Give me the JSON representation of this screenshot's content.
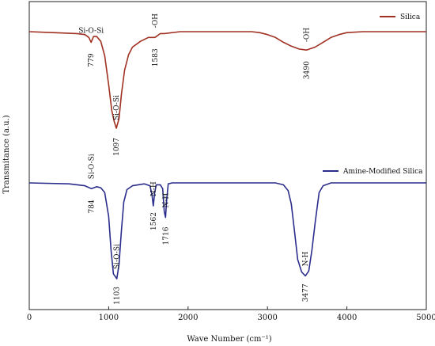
{
  "chart_data": {
    "type": "line",
    "xlabel": "Wave Number (cm⁻¹)",
    "ylabel": "Transmitance (a.u.)",
    "xlim": [
      0,
      5000
    ],
    "xticks": [
      "0",
      "1000",
      "2000",
      "3000",
      "4000",
      "5000"
    ],
    "grid": false,
    "legend_placement": "top-right (one entry per panel)",
    "series": [
      {
        "name": "Silica",
        "color": "#a03021",
        "panel": "top",
        "points": [
          [
            0,
            0
          ],
          [
            300,
            0.01
          ],
          [
            600,
            0.02
          ],
          [
            700,
            0.03
          ],
          [
            750,
            0.06
          ],
          [
            779,
            0.11
          ],
          [
            810,
            0.05
          ],
          [
            850,
            0.05
          ],
          [
            900,
            0.1
          ],
          [
            950,
            0.25
          ],
          [
            1000,
            0.55
          ],
          [
            1040,
            0.82
          ],
          [
            1070,
            0.93
          ],
          [
            1097,
            1.0
          ],
          [
            1130,
            0.9
          ],
          [
            1160,
            0.65
          ],
          [
            1200,
            0.4
          ],
          [
            1250,
            0.24
          ],
          [
            1300,
            0.16
          ],
          [
            1400,
            0.1
          ],
          [
            1500,
            0.06
          ],
          [
            1583,
            0.06
          ],
          [
            1650,
            0.02
          ],
          [
            1700,
            0.02
          ],
          [
            1900,
            0.0
          ],
          [
            2400,
            0.0
          ],
          [
            2800,
            0.0
          ],
          [
            2900,
            0.01
          ],
          [
            3000,
            0.03
          ],
          [
            3100,
            0.06
          ],
          [
            3200,
            0.11
          ],
          [
            3300,
            0.15
          ],
          [
            3400,
            0.18
          ],
          [
            3490,
            0.19
          ],
          [
            3600,
            0.16
          ],
          [
            3700,
            0.11
          ],
          [
            3800,
            0.06
          ],
          [
            3900,
            0.03
          ],
          [
            4000,
            0.01
          ],
          [
            4200,
            0.0
          ],
          [
            5000,
            0.0
          ]
        ],
        "annotations": [
          {
            "label": "Si-O-Si",
            "x": 779
          },
          {
            "label": "779",
            "x": 779
          },
          {
            "label": "Si-O-Si",
            "x": 1097
          },
          {
            "label": "1097",
            "x": 1097
          },
          {
            "label": "-OH",
            "x": 1583
          },
          {
            "label": "1583",
            "x": 1583
          },
          {
            "label": "-OH",
            "x": 3490
          },
          {
            "label": "3490",
            "x": 3490
          }
        ]
      },
      {
        "name": "Amine-Modified Silica",
        "color": "#2b2d8c",
        "panel": "bottom",
        "points": [
          [
            0,
            0
          ],
          [
            500,
            0.01
          ],
          [
            700,
            0.03
          ],
          [
            784,
            0.06
          ],
          [
            850,
            0.04
          ],
          [
            900,
            0.05
          ],
          [
            950,
            0.1
          ],
          [
            1000,
            0.35
          ],
          [
            1030,
            0.7
          ],
          [
            1060,
            0.95
          ],
          [
            1103,
            1.0
          ],
          [
            1130,
            0.85
          ],
          [
            1160,
            0.5
          ],
          [
            1190,
            0.2
          ],
          [
            1230,
            0.07
          ],
          [
            1300,
            0.03
          ],
          [
            1450,
            0.01
          ],
          [
            1520,
            0.03
          ],
          [
            1545,
            0.12
          ],
          [
            1562,
            0.24
          ],
          [
            1580,
            0.1
          ],
          [
            1600,
            0.02
          ],
          [
            1650,
            0.02
          ],
          [
            1680,
            0.06
          ],
          [
            1700,
            0.3
          ],
          [
            1716,
            0.36
          ],
          [
            1730,
            0.18
          ],
          [
            1750,
            0.01
          ],
          [
            1800,
            0.0
          ],
          [
            2500,
            0.0
          ],
          [
            3100,
            0.0
          ],
          [
            3200,
            0.02
          ],
          [
            3260,
            0.08
          ],
          [
            3300,
            0.22
          ],
          [
            3340,
            0.5
          ],
          [
            3380,
            0.8
          ],
          [
            3430,
            0.93
          ],
          [
            3477,
            0.97
          ],
          [
            3520,
            0.92
          ],
          [
            3560,
            0.7
          ],
          [
            3600,
            0.42
          ],
          [
            3650,
            0.1
          ],
          [
            3700,
            0.03
          ],
          [
            3800,
            0.0
          ],
          [
            5000,
            0.0
          ]
        ],
        "annotations": [
          {
            "label": "Si-O-Si",
            "x": 784
          },
          {
            "label": "784",
            "x": 784
          },
          {
            "label": "Si-O-Si",
            "x": 1103
          },
          {
            "label": "1103",
            "x": 1103
          },
          {
            "label": "N-H",
            "x": 1562
          },
          {
            "label": "1562",
            "x": 1562
          },
          {
            "label": "N-H",
            "x": 1716
          },
          {
            "label": "1716",
            "x": 1716
          },
          {
            "label": "N-H",
            "x": 3477
          },
          {
            "label": "3477",
            "x": 3477
          }
        ]
      }
    ]
  }
}
